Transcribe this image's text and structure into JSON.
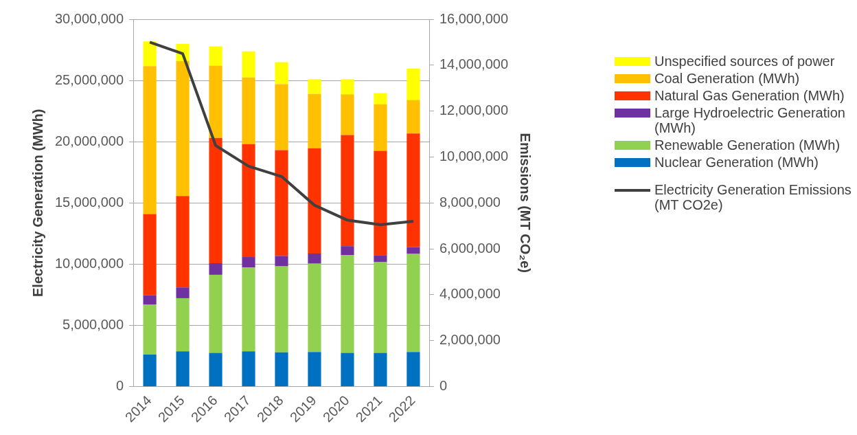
{
  "chart_data": {
    "type": "bar",
    "stacked": true,
    "categories": [
      "2014",
      "2015",
      "2016",
      "2017",
      "2018",
      "2019",
      "2020",
      "2021",
      "2022"
    ],
    "ylabel": "Electricity Generation (MWh)",
    "y2label": "Emissions (MT CO₂e)",
    "ylim": [
      0,
      30000000
    ],
    "yticks": [
      {
        "value": 0,
        "label": "0"
      },
      {
        "value": 5000000,
        "label": "5,000,000"
      },
      {
        "value": 10000000,
        "label": "10,000,000"
      },
      {
        "value": 15000000,
        "label": "15,000,000"
      },
      {
        "value": 20000000,
        "label": "20,000,000"
      },
      {
        "value": 25000000,
        "label": "25,000,000"
      },
      {
        "value": 30000000,
        "label": "30,000,000"
      }
    ],
    "y2lim": [
      0,
      16000000
    ],
    "y2ticks": [
      {
        "value": 0,
        "label": "0"
      },
      {
        "value": 2000000,
        "label": "2,000,000"
      },
      {
        "value": 4000000,
        "label": "4,000,000"
      },
      {
        "value": 6000000,
        "label": "6,000,000"
      },
      {
        "value": 8000000,
        "label": "8,000,000"
      },
      {
        "value": 10000000,
        "label": "10,000,000"
      },
      {
        "value": 12000000,
        "label": "12,000,000"
      },
      {
        "value": 14000000,
        "label": "14,000,000"
      },
      {
        "value": 16000000,
        "label": "16,000,000"
      }
    ],
    "grid": "y",
    "legend": "right",
    "series": [
      {
        "name": "Nuclear Generation (MWh)",
        "color": "#0070c0",
        "values": [
          2620000,
          2880000,
          2760000,
          2880000,
          2800000,
          2820000,
          2760000,
          2760000,
          2820000
        ]
      },
      {
        "name": "Renewable Generation (MWh)",
        "color": "#92d050",
        "values": [
          4090000,
          4340000,
          6370000,
          6840000,
          7020000,
          7220000,
          7990000,
          7400000,
          8010000
        ]
      },
      {
        "name": "Large Hydroelectric Generation (MWh)",
        "color": "#7030a0",
        "values": [
          750000,
          880000,
          950000,
          860000,
          850000,
          830000,
          720000,
          570000,
          560000
        ]
      },
      {
        "name": "Natural Gas Generation (MWh)",
        "color": "#ff3300",
        "values": [
          6630000,
          7460000,
          10220000,
          9220000,
          8640000,
          8590000,
          9070000,
          8520000,
          9280000
        ]
      },
      {
        "name": "Coal Generation (MWh)",
        "color": "#ffc000",
        "values": [
          12080000,
          11010000,
          5910000,
          5440000,
          5390000,
          4430000,
          3330000,
          3810000,
          2740000
        ]
      },
      {
        "name": "Unspecified sources of power",
        "color": "#ffff00",
        "values": [
          2020000,
          1430000,
          1570000,
          2140000,
          1790000,
          1210000,
          1230000,
          910000,
          2560000
        ]
      },
      {
        "name": "Electricity Generation Emissions (MT CO2e)",
        "type": "line",
        "axis": "y2",
        "color": "#404040",
        "marker": "none",
        "values": [
          15000000,
          14500000,
          10500000,
          9600000,
          9150000,
          7900000,
          7250000,
          7050000,
          7200000
        ]
      }
    ]
  }
}
